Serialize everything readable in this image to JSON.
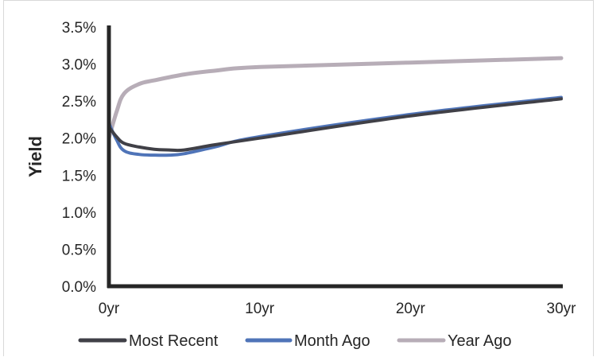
{
  "chart_data": {
    "type": "line",
    "ylabel": "Yield",
    "xlabel": "",
    "xlim": [
      0,
      30
    ],
    "ylim": [
      0,
      3.5
    ],
    "x_tick_values": [
      0,
      10,
      20,
      30
    ],
    "x_tick_labels": [
      "0yr",
      "10yr",
      "20yr",
      "30yr"
    ],
    "y_tick_values": [
      0,
      0.5,
      1.0,
      1.5,
      2.0,
      2.5,
      3.0,
      3.5
    ],
    "y_tick_labels": [
      "0.0%",
      "0.5%",
      "1.0%",
      "1.5%",
      "2.0%",
      "2.5%",
      "3.0%",
      "3.5%"
    ],
    "grid": false,
    "legend_position": "bottom",
    "series": [
      {
        "name": "Most Recent",
        "color": "#404047",
        "x": [
          0,
          0.5,
          1,
          2,
          3,
          4,
          5,
          7,
          10,
          20,
          30
        ],
        "y": [
          2.15,
          2.02,
          1.93,
          1.88,
          1.85,
          1.84,
          1.84,
          1.91,
          2.0,
          2.3,
          2.53
        ]
      },
      {
        "name": "Month Ago",
        "color": "#4f74b8",
        "x": [
          0,
          0.5,
          1,
          2,
          3,
          4,
          5,
          7,
          10,
          20,
          30
        ],
        "y": [
          2.2,
          1.98,
          1.83,
          1.78,
          1.77,
          1.77,
          1.79,
          1.88,
          2.02,
          2.32,
          2.55
        ]
      },
      {
        "name": "Year Ago",
        "color": "#b7adb7",
        "x": [
          0,
          0.5,
          1,
          2,
          3,
          5,
          7,
          10,
          20,
          30
        ],
        "y": [
          2.0,
          2.35,
          2.6,
          2.73,
          2.78,
          2.86,
          2.91,
          2.96,
          3.02,
          3.08
        ]
      }
    ]
  }
}
